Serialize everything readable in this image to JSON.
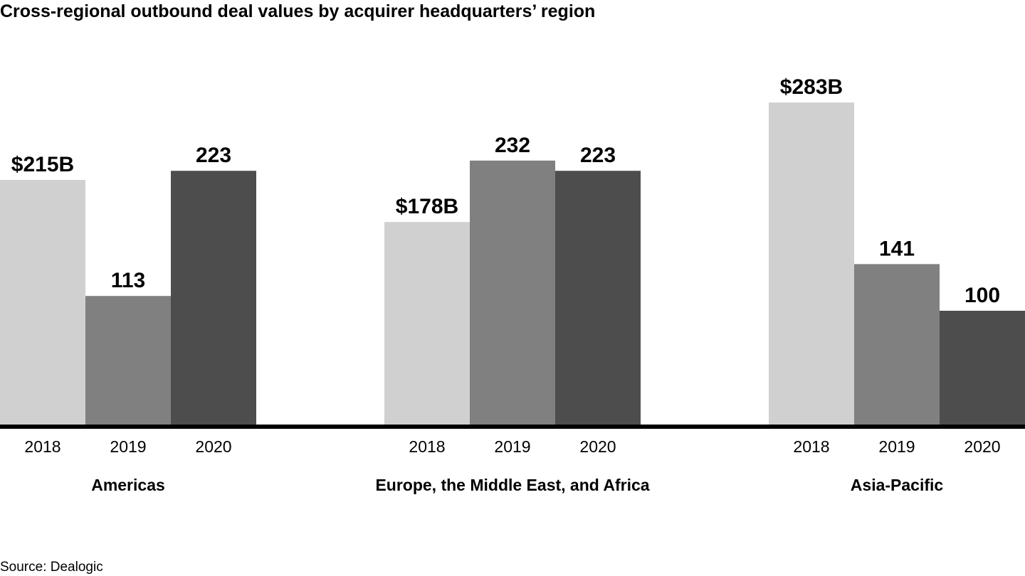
{
  "chart_data": {
    "type": "bar",
    "title": "Cross-regional outbound deal values by acquirer headquarters’ region",
    "categories": [
      "Americas",
      "Europe, the Middle East, and Africa",
      "Asia-Pacific"
    ],
    "x": [
      "2018",
      "2019",
      "2020"
    ],
    "series": [
      {
        "name": "2018",
        "values": [
          215,
          178,
          283
        ],
        "labels": [
          "$215B",
          "$178B",
          "$283B"
        ],
        "color": "#d0d0d0"
      },
      {
        "name": "2019",
        "values": [
          113,
          232,
          141
        ],
        "labels": [
          "113",
          "232",
          "141"
        ],
        "color": "#808080"
      },
      {
        "name": "2020",
        "values": [
          223,
          223,
          100
        ],
        "labels": [
          "223",
          "223",
          "100"
        ],
        "color": "#4d4d4d"
      }
    ],
    "units": "$B",
    "ylim": [
      0,
      300
    ],
    "grid": false,
    "legend": "none"
  },
  "source": "Source: Dealogic"
}
